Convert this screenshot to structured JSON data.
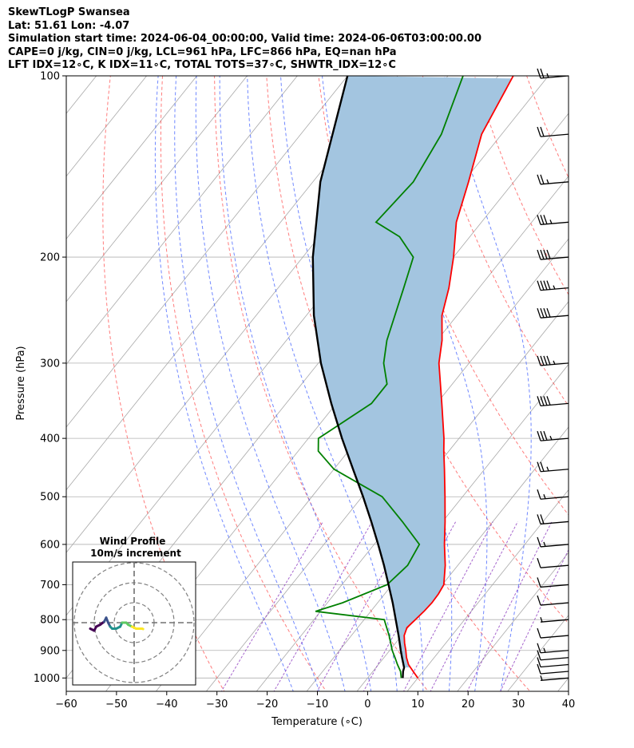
{
  "header": {
    "line1": "SkewTLogP Swansea",
    "line2": "Lat: 51.61   Lon: -4.07",
    "line3": "Simulation start time: 2024-06-04_00:00:00, Valid time: 2024-06-06T03:00:00.00",
    "line4": "CAPE=0 j/kg, CIN=0 j/kg, LCL=961 hPa, LFC=866 hPa, EQ=nan hPa",
    "line5": "LFT IDX=12∘C, K IDX=11∘C, TOTAL TOTS=37∘C, SHWTR_IDX=12∘C"
  },
  "chart_data": [
    {
      "type": "line",
      "subtype": "skew-t-log-p",
      "xlabel": "Temperature (∘C)",
      "ylabel": "Pressure (hPa)",
      "xlim": [
        -60,
        40
      ],
      "ylim": [
        1050,
        100
      ],
      "y_scale": "log",
      "grid": true,
      "skew_deg_per_decade": 96,
      "x_ticks": [
        "−60",
        "−50",
        "−40",
        "−30",
        "−20",
        "−10",
        "0",
        "10",
        "20",
        "30",
        "40"
      ],
      "x_tick_values": [
        -60,
        -50,
        -40,
        -30,
        -20,
        -10,
        0,
        10,
        20,
        30,
        40
      ],
      "y_ticks": [
        "100",
        "200",
        "300",
        "400",
        "500",
        "600",
        "700",
        "800",
        "900",
        "1000"
      ],
      "y_tick_values": [
        100,
        200,
        300,
        400,
        500,
        600,
        700,
        800,
        900,
        1000
      ],
      "series": [
        {
          "color": "#ff0000",
          "points": [
            [
              1000,
              10
            ],
            [
              975,
              8
            ],
            [
              950,
              6
            ],
            [
              925,
              4.5
            ],
            [
              900,
              3.2
            ],
            [
              875,
              1.8
            ],
            [
              850,
              0.5
            ],
            [
              825,
              -0.2
            ],
            [
              800,
              0.2
            ],
            [
              775,
              0.6
            ],
            [
              750,
              0.8
            ],
            [
              725,
              0.7
            ],
            [
              700,
              0.3
            ],
            [
              650,
              -2.5
            ],
            [
              600,
              -6
            ],
            [
              550,
              -9.5
            ],
            [
              500,
              -13.5
            ],
            [
              450,
              -18
            ],
            [
              420,
              -21
            ],
            [
              400,
              -23
            ],
            [
              350,
              -29
            ],
            [
              300,
              -36
            ],
            [
              275,
              -39
            ],
            [
              250,
              -43
            ],
            [
              225,
              -46
            ],
            [
              200,
              -50
            ],
            [
              175,
              -55
            ],
            [
              150,
              -59
            ],
            [
              125,
              -64
            ],
            [
              100,
              -67
            ]
          ]
        },
        {
          "color": "#008000",
          "points": [
            [
              1000,
              6.7
            ],
            [
              975,
              5.5
            ],
            [
              950,
              3.8
            ],
            [
              925,
              2.2
            ],
            [
              900,
              0.5
            ],
            [
              850,
              -2.5
            ],
            [
              800,
              -6
            ],
            [
              775,
              -21
            ],
            [
              750,
              -17
            ],
            [
              700,
              -11
            ],
            [
              650,
              -10
            ],
            [
              600,
              -11
            ],
            [
              550,
              -18
            ],
            [
              500,
              -26
            ],
            [
              450,
              -40
            ],
            [
              420,
              -46
            ],
            [
              400,
              -48
            ],
            [
              350,
              -43
            ],
            [
              325,
              -43
            ],
            [
              300,
              -47
            ],
            [
              275,
              -50
            ],
            [
              225,
              -55
            ],
            [
              200,
              -58
            ],
            [
              185,
              -64
            ],
            [
              175,
              -71
            ],
            [
              150,
              -70
            ],
            [
              125,
              -72
            ],
            [
              100,
              -77
            ]
          ]
        },
        {
          "color": "#000000",
          "points": [
            [
              1000,
              7.0
            ],
            [
              975,
              6.0
            ],
            [
              961,
              5.6
            ],
            [
              925,
              3.6
            ],
            [
              900,
              2.2
            ],
            [
              850,
              -0.6
            ],
            [
              800,
              -3.7
            ],
            [
              750,
              -7.0
            ],
            [
              700,
              -10.7
            ],
            [
              650,
              -14.7
            ],
            [
              600,
              -19.2
            ],
            [
              550,
              -24.2
            ],
            [
              500,
              -29.8
            ],
            [
              450,
              -36.2
            ],
            [
              400,
              -43.3
            ],
            [
              350,
              -51.0
            ],
            [
              300,
              -59.5
            ],
            [
              250,
              -68.5
            ],
            [
              200,
              -78.0
            ],
            [
              150,
              -88.5
            ],
            [
              100,
              -100.0
            ]
          ]
        }
      ],
      "dry_adiabats_theta_c": [
        -30,
        -10,
        10,
        30,
        50,
        70,
        90,
        110,
        130
      ],
      "moist_adiabats_c": [
        -10,
        -5,
        0,
        5,
        10,
        15,
        20,
        25,
        30
      ],
      "mixing_ratios": [
        0.4,
        1,
        2,
        4,
        7,
        10,
        16,
        24
      ],
      "wind_barbs": [
        {
          "p": 100,
          "u": 0,
          "spd": 25
        },
        {
          "p": 125,
          "u": 0,
          "spd": 20
        },
        {
          "p": 150,
          "u": 0,
          "spd": 25
        },
        {
          "p": 175,
          "u": 0,
          "spd": 35
        },
        {
          "p": 200,
          "u": 0,
          "spd": 40
        },
        {
          "p": 225,
          "u": 0,
          "spd": 45
        },
        {
          "p": 250,
          "u": 0,
          "spd": 40
        },
        {
          "p": 300,
          "u": 0,
          "spd": 45
        },
        {
          "p": 350,
          "u": 0,
          "spd": 40
        },
        {
          "p": 400,
          "u": 0,
          "spd": 35
        },
        {
          "p": 450,
          "u": 0,
          "spd": 25
        },
        {
          "p": 500,
          "u": 0,
          "spd": 15
        },
        {
          "p": 550,
          "u": 0,
          "spd": 20
        },
        {
          "p": 600,
          "u": 0,
          "spd": 15
        },
        {
          "p": 650,
          "u": 0,
          "spd": 10
        },
        {
          "p": 700,
          "u": 0,
          "spd": 10
        },
        {
          "p": 750,
          "u": 0,
          "spd": 10
        },
        {
          "p": 800,
          "u": 0,
          "spd": 5
        },
        {
          "p": 850,
          "u": 0,
          "spd": 10
        },
        {
          "p": 900,
          "u": 0,
          "spd": 15
        },
        {
          "p": 925,
          "u": 0,
          "spd": 10
        },
        {
          "p": 950,
          "u": 0,
          "spd": 10
        },
        {
          "p": 975,
          "u": 0,
          "spd": 10
        },
        {
          "p": 1000,
          "u": 0,
          "spd": 5
        }
      ]
    },
    {
      "type": "line",
      "subtype": "hodograph",
      "title": "Wind Profile",
      "subtitle": "10m/s increment",
      "ring_increment": 10,
      "rings": [
        10,
        20,
        30
      ],
      "points": [
        [
          -22,
          -3
        ],
        [
          -20,
          -4
        ],
        [
          -19,
          -2
        ],
        [
          -17,
          -1
        ],
        [
          -15,
          0.5
        ],
        [
          -14,
          2.5
        ],
        [
          -13,
          0
        ],
        [
          -12,
          -2
        ],
        [
          -11,
          -3
        ],
        [
          -9,
          -3
        ],
        [
          -7,
          -2
        ],
        [
          -6,
          0
        ],
        [
          -4,
          0
        ],
        [
          -3,
          -1
        ],
        [
          -1,
          -2
        ],
        [
          1,
          -3
        ],
        [
          4,
          -3
        ],
        [
          4.5,
          -3.2
        ]
      ],
      "colors": [
        "#440154",
        "#3b528b",
        "#21918c",
        "#5ec962",
        "#fde725"
      ]
    }
  ]
}
